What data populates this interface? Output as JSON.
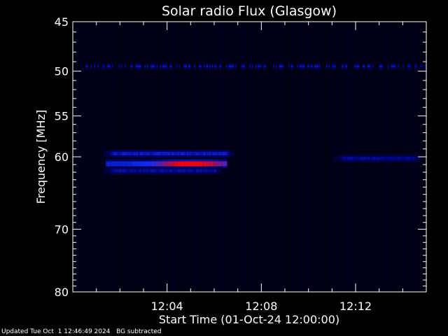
{
  "chart_data": {
    "type": "heatmap",
    "title": "Solar radio Flux (Glasgow)",
    "xlabel": "Start Time (01-Oct-24 12:00:00)",
    "ylabel": "Frequency [MHz]",
    "x_range_min": [
      0,
      15
    ],
    "y_range_mhz": [
      45,
      80
    ],
    "y_scale": "log",
    "y_direction": "top-to-bottom increasing",
    "xticks": [
      {
        "min": 4,
        "label": "12:04"
      },
      {
        "min": 8,
        "label": "12:08"
      },
      {
        "min": 12,
        "label": "12:12"
      }
    ],
    "yticks": [
      {
        "mhz": 45,
        "label": "45"
      },
      {
        "mhz": 50,
        "label": "50"
      },
      {
        "mhz": 55,
        "label": "55"
      },
      {
        "mhz": 60,
        "label": "60"
      },
      {
        "mhz": 70,
        "label": "70"
      },
      {
        "mhz": 80,
        "label": "80"
      }
    ],
    "colormap": [
      "#000010",
      "#00007a",
      "#1030ff",
      "#ff0000"
    ],
    "features": [
      {
        "name": "interference line",
        "mhz": 49.5,
        "t_start": 0.2,
        "t_end": 15,
        "intensity": 0.55
      },
      {
        "name": "burst upper band",
        "mhz": 59.6,
        "t_start": 1.3,
        "t_end": 6.8,
        "intensity": 0.6
      },
      {
        "name": "burst core",
        "mhz": 60.9,
        "t_start": 1.4,
        "t_end": 6.5,
        "intensity": 0.95
      },
      {
        "name": "burst lower band",
        "mhz": 61.8,
        "t_start": 1.3,
        "t_end": 6.3,
        "intensity": 0.5
      },
      {
        "name": "late band",
        "mhz": 60.2,
        "t_start": 11.1,
        "t_end": 14.8,
        "intensity": 0.45
      }
    ]
  },
  "footer": {
    "updated": "Updated Tue Oct  1 12:46:49 2024",
    "note": "BG subtracted"
  }
}
